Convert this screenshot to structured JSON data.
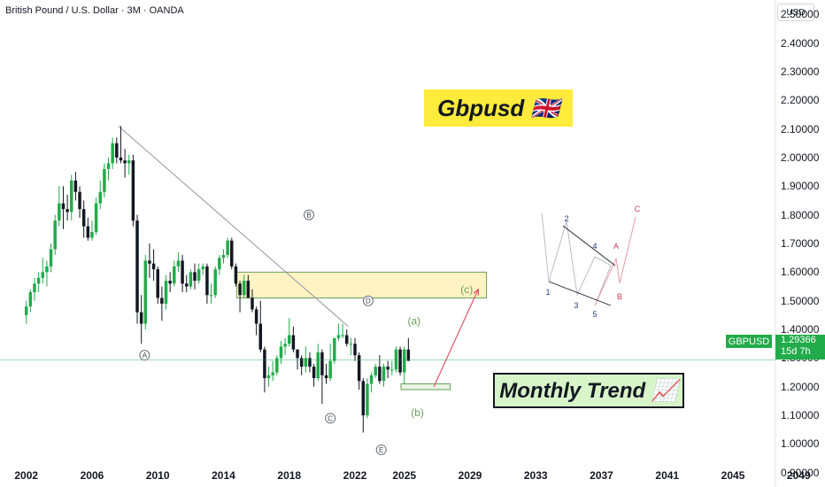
{
  "header": {
    "title": "British Pound / U.S. Dollar · 3M · OANDA",
    "currency": "USD"
  },
  "banners": {
    "title_text": "Gbpusd 🇬🇧",
    "trend_text": "Monthly Trend 📈"
  },
  "price_tag": {
    "symbol": "GBPUSD",
    "price": "1.29366",
    "countdown": "15d 7h"
  },
  "colors": {
    "up": "#22ab4a",
    "down": "#131722",
    "zone": "#fff3c4",
    "arrow": "#e0556b",
    "wave_green": "#6a9e5b"
  },
  "chart_data": {
    "type": "candlestick",
    "title": "British Pound / U.S. Dollar · 3M · OANDA",
    "ylim": [
      0.85,
      2.55
    ],
    "xlim": [
      2000.4,
      2050.6
    ],
    "y_ticks": [
      "0.90000",
      "1.00000",
      "1.10000",
      "1.20000",
      "1.30000",
      "1.40000",
      "1.50000",
      "1.60000",
      "1.70000",
      "1.80000",
      "1.90000",
      "2.00000",
      "2.10000",
      "2.20000",
      "2.30000",
      "2.40000",
      "2.50000"
    ],
    "x_ticks": [
      "2002",
      "2006",
      "2010",
      "2014",
      "2018",
      "2022",
      "2025",
      "2029",
      "2033",
      "2037",
      "2041",
      "2045",
      "2049"
    ],
    "last_price": 1.29366,
    "zone": {
      "x0": 2014.8,
      "x1": 2030.0,
      "y0": 1.51,
      "y1": 1.6
    },
    "support_box": {
      "x0": 2024.8,
      "x1": 2027.8,
      "y0": 1.19,
      "y1": 1.21
    },
    "trendline": [
      [
        2007.6,
        2.11
      ],
      [
        2021.6,
        1.41
      ]
    ],
    "projection_arrow": [
      [
        2026.8,
        1.2
      ],
      [
        2029.5,
        1.54
      ]
    ],
    "wave_labels": [
      {
        "label": "A",
        "x": 2009.2,
        "y": 1.31,
        "style": "circled"
      },
      {
        "label": "B",
        "x": 2019.2,
        "y": 1.8,
        "style": "circled"
      },
      {
        "label": "C",
        "x": 2020.5,
        "y": 1.09,
        "style": "circled"
      },
      {
        "label": "D",
        "x": 2022.8,
        "y": 1.5,
        "style": "circled"
      },
      {
        "label": "E",
        "x": 2023.6,
        "y": 0.98,
        "style": "circled"
      },
      {
        "label": "(a)",
        "x": 2025.6,
        "y": 1.43,
        "style": "green"
      },
      {
        "label": "(b)",
        "x": 2025.8,
        "y": 1.11,
        "style": "green"
      },
      {
        "label": "(c)",
        "x": 2028.8,
        "y": 1.54,
        "style": "green"
      }
    ],
    "candles": [
      {
        "t": 2002.0,
        "o": 1.45,
        "h": 1.5,
        "l": 1.42,
        "c": 1.48
      },
      {
        "t": 2002.25,
        "o": 1.48,
        "h": 1.54,
        "l": 1.46,
        "c": 1.53
      },
      {
        "t": 2002.5,
        "o": 1.53,
        "h": 1.58,
        "l": 1.5,
        "c": 1.56
      },
      {
        "t": 2002.75,
        "o": 1.56,
        "h": 1.6,
        "l": 1.53,
        "c": 1.58
      },
      {
        "t": 2003.0,
        "o": 1.58,
        "h": 1.65,
        "l": 1.56,
        "c": 1.6
      },
      {
        "t": 2003.25,
        "o": 1.6,
        "h": 1.64,
        "l": 1.55,
        "c": 1.62
      },
      {
        "t": 2003.5,
        "o": 1.62,
        "h": 1.7,
        "l": 1.6,
        "c": 1.68
      },
      {
        "t": 2003.75,
        "o": 1.68,
        "h": 1.8,
        "l": 1.66,
        "c": 1.78
      },
      {
        "t": 2004.0,
        "o": 1.78,
        "h": 1.9,
        "l": 1.76,
        "c": 1.84
      },
      {
        "t": 2004.25,
        "o": 1.84,
        "h": 1.9,
        "l": 1.75,
        "c": 1.82
      },
      {
        "t": 2004.5,
        "o": 1.82,
        "h": 1.87,
        "l": 1.78,
        "c": 1.81
      },
      {
        "t": 2004.75,
        "o": 1.81,
        "h": 1.94,
        "l": 1.78,
        "c": 1.92
      },
      {
        "t": 2005.0,
        "o": 1.92,
        "h": 1.95,
        "l": 1.85,
        "c": 1.88
      },
      {
        "t": 2005.25,
        "o": 1.88,
        "h": 1.9,
        "l": 1.79,
        "c": 1.82
      },
      {
        "t": 2005.5,
        "o": 1.82,
        "h": 1.85,
        "l": 1.72,
        "c": 1.76
      },
      {
        "t": 2005.75,
        "o": 1.76,
        "h": 1.79,
        "l": 1.71,
        "c": 1.72
      },
      {
        "t": 2006.0,
        "o": 1.72,
        "h": 1.78,
        "l": 1.71,
        "c": 1.74
      },
      {
        "t": 2006.25,
        "o": 1.74,
        "h": 1.86,
        "l": 1.73,
        "c": 1.84
      },
      {
        "t": 2006.5,
        "o": 1.84,
        "h": 1.92,
        "l": 1.82,
        "c": 1.88
      },
      {
        "t": 2006.75,
        "o": 1.88,
        "h": 1.98,
        "l": 1.86,
        "c": 1.96
      },
      {
        "t": 2007.0,
        "o": 1.96,
        "h": 2.0,
        "l": 1.92,
        "c": 1.98
      },
      {
        "t": 2007.25,
        "o": 1.98,
        "h": 2.07,
        "l": 1.96,
        "c": 2.05
      },
      {
        "t": 2007.5,
        "o": 2.05,
        "h": 2.07,
        "l": 1.98,
        "c": 2.0
      },
      {
        "t": 2007.75,
        "o": 2.0,
        "h": 2.11,
        "l": 1.98,
        "c": 1.99
      },
      {
        "t": 2008.0,
        "o": 1.99,
        "h": 2.03,
        "l": 1.93,
        "c": 1.98
      },
      {
        "t": 2008.25,
        "o": 1.98,
        "h": 2.01,
        "l": 1.94,
        "c": 1.99
      },
      {
        "t": 2008.5,
        "o": 1.99,
        "h": 2.01,
        "l": 1.76,
        "c": 1.78
      },
      {
        "t": 2008.75,
        "o": 1.78,
        "h": 1.8,
        "l": 1.42,
        "c": 1.46
      },
      {
        "t": 2009.0,
        "o": 1.46,
        "h": 1.52,
        "l": 1.35,
        "c": 1.42
      },
      {
        "t": 2009.25,
        "o": 1.42,
        "h": 1.66,
        "l": 1.4,
        "c": 1.64
      },
      {
        "t": 2009.5,
        "o": 1.64,
        "h": 1.7,
        "l": 1.58,
        "c": 1.63
      },
      {
        "t": 2009.75,
        "o": 1.63,
        "h": 1.68,
        "l": 1.57,
        "c": 1.61
      },
      {
        "t": 2010.0,
        "o": 1.61,
        "h": 1.62,
        "l": 1.49,
        "c": 1.51
      },
      {
        "t": 2010.25,
        "o": 1.51,
        "h": 1.55,
        "l": 1.43,
        "c": 1.49
      },
      {
        "t": 2010.5,
        "o": 1.49,
        "h": 1.59,
        "l": 1.47,
        "c": 1.57
      },
      {
        "t": 2010.75,
        "o": 1.57,
        "h": 1.6,
        "l": 1.53,
        "c": 1.56
      },
      {
        "t": 2011.0,
        "o": 1.56,
        "h": 1.64,
        "l": 1.55,
        "c": 1.62
      },
      {
        "t": 2011.25,
        "o": 1.62,
        "h": 1.67,
        "l": 1.6,
        "c": 1.64
      },
      {
        "t": 2011.5,
        "o": 1.64,
        "h": 1.66,
        "l": 1.53,
        "c": 1.56
      },
      {
        "t": 2011.75,
        "o": 1.56,
        "h": 1.59,
        "l": 1.53,
        "c": 1.55
      },
      {
        "t": 2012.0,
        "o": 1.55,
        "h": 1.61,
        "l": 1.54,
        "c": 1.6
      },
      {
        "t": 2012.25,
        "o": 1.6,
        "h": 1.63,
        "l": 1.54,
        "c": 1.57
      },
      {
        "t": 2012.5,
        "o": 1.57,
        "h": 1.63,
        "l": 1.56,
        "c": 1.61
      },
      {
        "t": 2012.75,
        "o": 1.61,
        "h": 1.63,
        "l": 1.59,
        "c": 1.62
      },
      {
        "t": 2013.0,
        "o": 1.62,
        "h": 1.63,
        "l": 1.49,
        "c": 1.52
      },
      {
        "t": 2013.25,
        "o": 1.52,
        "h": 1.56,
        "l": 1.49,
        "c": 1.52
      },
      {
        "t": 2013.5,
        "o": 1.52,
        "h": 1.62,
        "l": 1.51,
        "c": 1.61
      },
      {
        "t": 2013.75,
        "o": 1.61,
        "h": 1.66,
        "l": 1.59,
        "c": 1.65
      },
      {
        "t": 2014.0,
        "o": 1.65,
        "h": 1.68,
        "l": 1.63,
        "c": 1.66
      },
      {
        "t": 2014.25,
        "o": 1.66,
        "h": 1.72,
        "l": 1.65,
        "c": 1.71
      },
      {
        "t": 2014.5,
        "o": 1.71,
        "h": 1.72,
        "l": 1.61,
        "c": 1.62
      },
      {
        "t": 2014.75,
        "o": 1.62,
        "h": 1.63,
        "l": 1.55,
        "c": 1.56
      },
      {
        "t": 2015.0,
        "o": 1.56,
        "h": 1.57,
        "l": 1.46,
        "c": 1.52
      },
      {
        "t": 2015.25,
        "o": 1.52,
        "h": 1.59,
        "l": 1.51,
        "c": 1.57
      },
      {
        "t": 2015.5,
        "o": 1.57,
        "h": 1.59,
        "l": 1.51,
        "c": 1.51
      },
      {
        "t": 2015.75,
        "o": 1.51,
        "h": 1.54,
        "l": 1.46,
        "c": 1.47
      },
      {
        "t": 2016.0,
        "o": 1.47,
        "h": 1.48,
        "l": 1.38,
        "c": 1.42
      },
      {
        "t": 2016.25,
        "o": 1.42,
        "h": 1.5,
        "l": 1.32,
        "c": 1.33
      },
      {
        "t": 2016.5,
        "o": 1.33,
        "h": 1.34,
        "l": 1.18,
        "c": 1.23
      },
      {
        "t": 2016.75,
        "o": 1.23,
        "h": 1.27,
        "l": 1.2,
        "c": 1.24
      },
      {
        "t": 2017.0,
        "o": 1.24,
        "h": 1.29,
        "l": 1.22,
        "c": 1.25
      },
      {
        "t": 2017.25,
        "o": 1.25,
        "h": 1.31,
        "l": 1.24,
        "c": 1.3
      },
      {
        "t": 2017.5,
        "o": 1.3,
        "h": 1.36,
        "l": 1.28,
        "c": 1.34
      },
      {
        "t": 2017.75,
        "o": 1.34,
        "h": 1.37,
        "l": 1.31,
        "c": 1.35
      },
      {
        "t": 2018.0,
        "o": 1.35,
        "h": 1.44,
        "l": 1.34,
        "c": 1.38
      },
      {
        "t": 2018.25,
        "o": 1.38,
        "h": 1.41,
        "l": 1.32,
        "c": 1.33
      },
      {
        "t": 2018.5,
        "o": 1.33,
        "h": 1.33,
        "l": 1.26,
        "c": 1.3
      },
      {
        "t": 2018.75,
        "o": 1.3,
        "h": 1.31,
        "l": 1.24,
        "c": 1.27
      },
      {
        "t": 2019.0,
        "o": 1.27,
        "h": 1.34,
        "l": 1.25,
        "c": 1.3
      },
      {
        "t": 2019.25,
        "o": 1.3,
        "h": 1.32,
        "l": 1.25,
        "c": 1.27
      },
      {
        "t": 2019.5,
        "o": 1.27,
        "h": 1.28,
        "l": 1.2,
        "c": 1.23
      },
      {
        "t": 2019.75,
        "o": 1.23,
        "h": 1.35,
        "l": 1.22,
        "c": 1.32
      },
      {
        "t": 2020.0,
        "o": 1.32,
        "h": 1.33,
        "l": 1.14,
        "c": 1.24
      },
      {
        "t": 2020.25,
        "o": 1.24,
        "h": 1.28,
        "l": 1.21,
        "c": 1.23
      },
      {
        "t": 2020.5,
        "o": 1.23,
        "h": 1.35,
        "l": 1.22,
        "c": 1.29
      },
      {
        "t": 2020.75,
        "o": 1.29,
        "h": 1.37,
        "l": 1.28,
        "c": 1.37
      },
      {
        "t": 2021.0,
        "o": 1.37,
        "h": 1.42,
        "l": 1.36,
        "c": 1.38
      },
      {
        "t": 2021.25,
        "o": 1.38,
        "h": 1.42,
        "l": 1.37,
        "c": 1.38
      },
      {
        "t": 2021.5,
        "o": 1.38,
        "h": 1.4,
        "l": 1.34,
        "c": 1.35
      },
      {
        "t": 2021.75,
        "o": 1.35,
        "h": 1.37,
        "l": 1.31,
        "c": 1.35
      },
      {
        "t": 2022.0,
        "o": 1.35,
        "h": 1.37,
        "l": 1.29,
        "c": 1.31
      },
      {
        "t": 2022.25,
        "o": 1.31,
        "h": 1.32,
        "l": 1.19,
        "c": 1.22
      },
      {
        "t": 2022.5,
        "o": 1.22,
        "h": 1.23,
        "l": 1.04,
        "c": 1.1
      },
      {
        "t": 2022.75,
        "o": 1.1,
        "h": 1.23,
        "l": 1.09,
        "c": 1.21
      },
      {
        "t": 2023.0,
        "o": 1.21,
        "h": 1.25,
        "l": 1.18,
        "c": 1.24
      },
      {
        "t": 2023.25,
        "o": 1.24,
        "h": 1.28,
        "l": 1.23,
        "c": 1.27
      },
      {
        "t": 2023.5,
        "o": 1.27,
        "h": 1.31,
        "l": 1.21,
        "c": 1.22
      },
      {
        "t": 2023.75,
        "o": 1.22,
        "h": 1.28,
        "l": 1.2,
        "c": 1.27
      },
      {
        "t": 2024.0,
        "o": 1.27,
        "h": 1.29,
        "l": 1.23,
        "c": 1.26
      },
      {
        "t": 2024.25,
        "o": 1.26,
        "h": 1.29,
        "l": 1.24,
        "c": 1.26
      },
      {
        "t": 2024.5,
        "o": 1.26,
        "h": 1.34,
        "l": 1.25,
        "c": 1.33
      },
      {
        "t": 2024.75,
        "o": 1.33,
        "h": 1.34,
        "l": 1.24,
        "c": 1.25
      },
      {
        "t": 2025.0,
        "o": 1.25,
        "h": 1.34,
        "l": 1.21,
        "c": 1.33
      },
      {
        "t": 2025.25,
        "o": 1.33,
        "h": 1.37,
        "l": 1.29,
        "c": 1.29
      }
    ],
    "schematic": {
      "impulse": [
        [
          1,
          2
        ],
        [
          2,
          3
        ],
        [
          3,
          4
        ],
        [
          4,
          5
        ]
      ],
      "labels": {
        "impulse": [
          "1",
          "2",
          "3",
          "4",
          "5"
        ],
        "correction": [
          "A",
          "B",
          "C"
        ]
      }
    }
  }
}
